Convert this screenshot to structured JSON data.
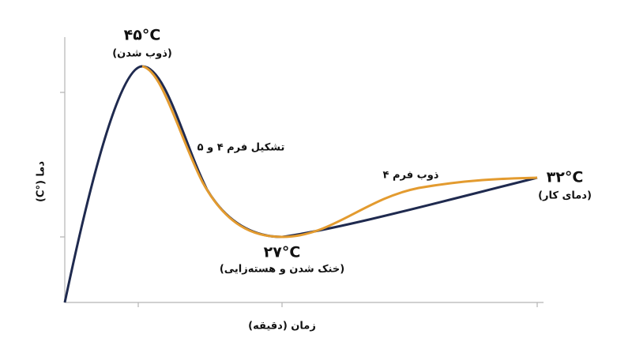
{
  "peak": {
    "temperature": "۴۵°C",
    "caption": "(ذوب شدن)"
  },
  "descent_label": "تشکیل فرم ۴ و ۵",
  "rise_label": "ذوب فرم ۴",
  "minimum": {
    "temperature": "۲۷°C",
    "caption": "(خنک شدن و هسته‌زایی)"
  },
  "working": {
    "temperature": "۳۲°C",
    "caption": "(دمای کار)"
  },
  "y_axis_label": "دما (°C)",
  "x_axis_label": "زمان (دقیقه)"
}
